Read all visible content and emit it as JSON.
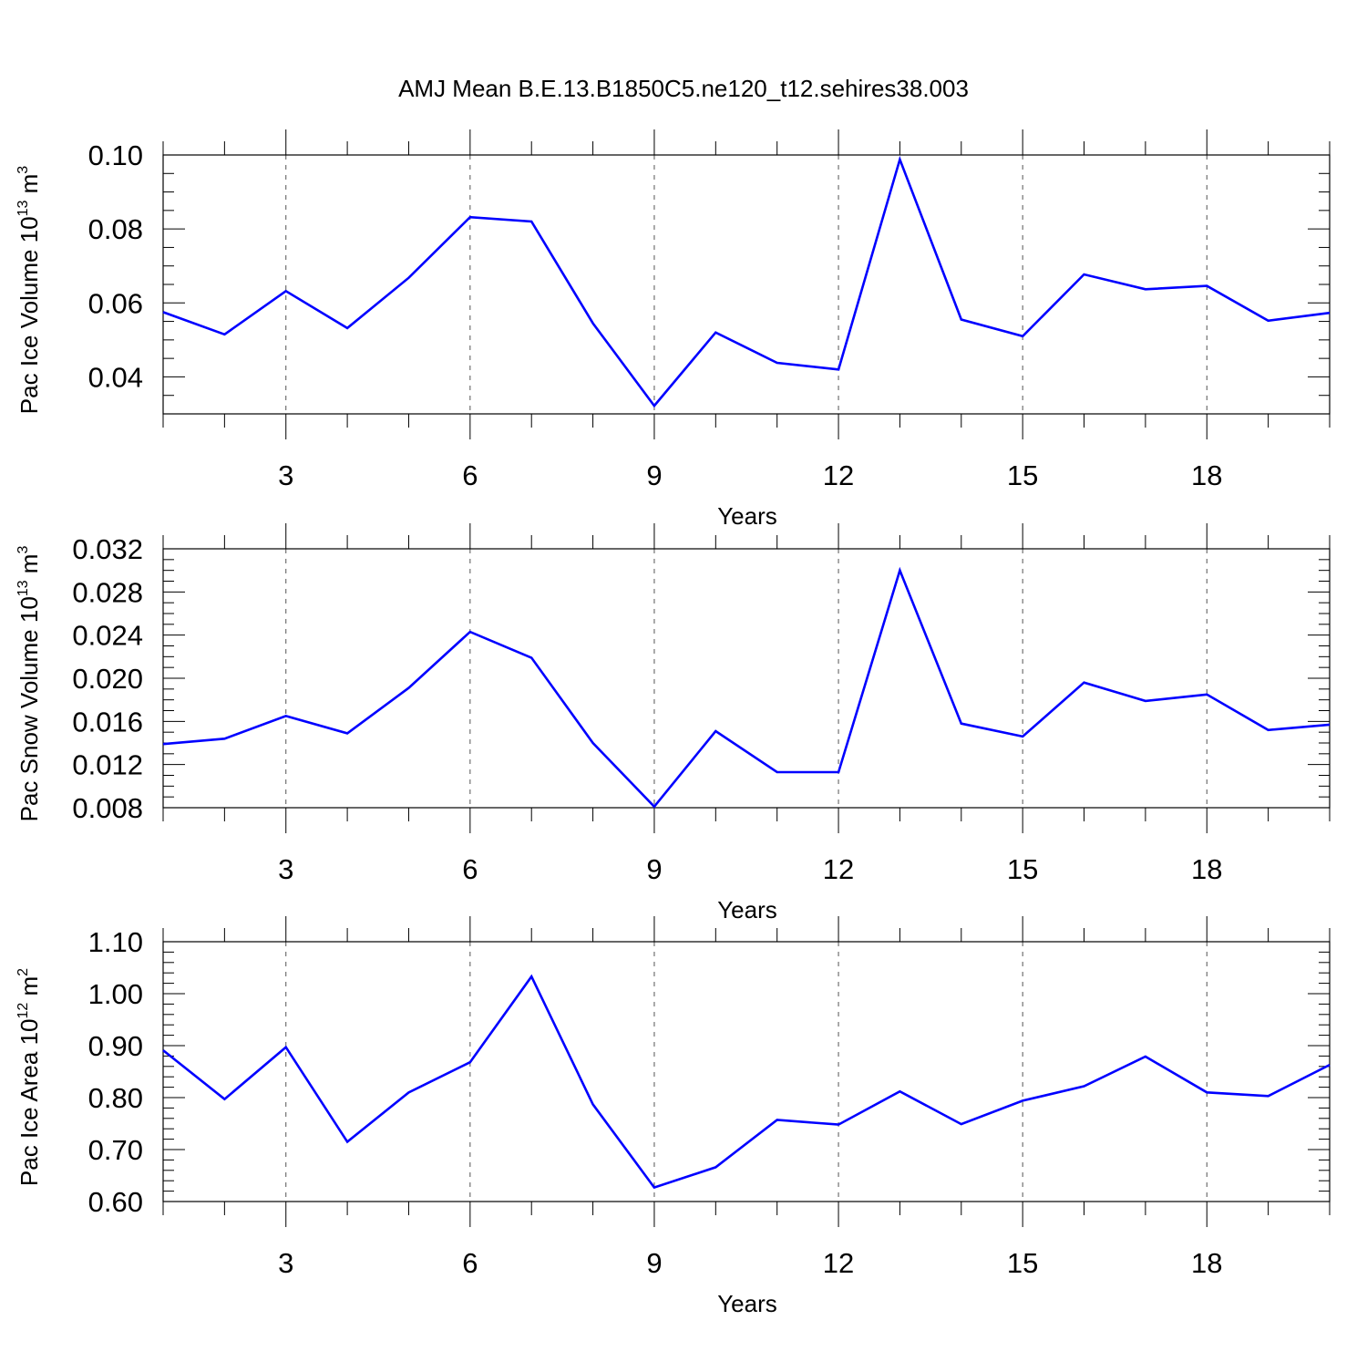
{
  "figure_title": "AMJ Mean B.E.13.B1850C5.ne120_t12.sehires38.003",
  "colors": {
    "line": "#0000ff",
    "axis": "#000000",
    "grid": "#555555",
    "background": "#ffffff"
  },
  "chart_data": [
    {
      "type": "line",
      "xlabel": "Years",
      "ylabel": {
        "text": "Pac Ice Volume 10",
        "exponent": "13",
        "unit": " m",
        "unit_exponent": "3"
      },
      "x_ticks": [
        "3",
        "6",
        "9",
        "12",
        "15",
        "18"
      ],
      "y_ticks": [
        "0.04",
        "0.06",
        "0.08",
        "0.10"
      ],
      "xlim": [
        1,
        20
      ],
      "ylim": [
        0.03,
        0.1
      ],
      "grid": "vertical dashed at major x ticks",
      "x": [
        1,
        2,
        3,
        4,
        5,
        6,
        7,
        8,
        9,
        10,
        11,
        12,
        13,
        14,
        15,
        16,
        17,
        18,
        19,
        20
      ],
      "y": [
        0.0575,
        0.0515,
        0.0632,
        0.0532,
        0.0668,
        0.0832,
        0.082,
        0.0545,
        0.0322,
        0.052,
        0.0438,
        0.042,
        0.0988,
        0.0555,
        0.051,
        0.0677,
        0.0637,
        0.0646,
        0.0552,
        0.0573
      ]
    },
    {
      "type": "line",
      "xlabel": "Years",
      "ylabel": {
        "text": "Pac Snow Volume 10",
        "exponent": "13",
        "unit": " m",
        "unit_exponent": "3"
      },
      "x_ticks": [
        "3",
        "6",
        "9",
        "12",
        "15",
        "18"
      ],
      "y_ticks": [
        "0.008",
        "0.012",
        "0.016",
        "0.020",
        "0.024",
        "0.028",
        "0.032"
      ],
      "xlim": [
        1,
        20
      ],
      "ylim": [
        0.008,
        0.032
      ],
      "grid": "vertical dashed at major x ticks",
      "x": [
        1,
        2,
        3,
        4,
        5,
        6,
        7,
        8,
        9,
        10,
        11,
        12,
        13,
        14,
        15,
        16,
        17,
        18,
        19,
        20
      ],
      "y": [
        0.0139,
        0.0144,
        0.0165,
        0.0149,
        0.0191,
        0.0243,
        0.0219,
        0.014,
        0.0081,
        0.0151,
        0.0113,
        0.0113,
        0.03,
        0.0158,
        0.0146,
        0.0196,
        0.0179,
        0.0185,
        0.0152,
        0.0157
      ]
    },
    {
      "type": "line",
      "xlabel": "Years",
      "ylabel": {
        "text": "Pac Ice Area 10",
        "exponent": "12",
        "unit": " m",
        "unit_exponent": "2"
      },
      "x_ticks": [
        "3",
        "6",
        "9",
        "12",
        "15",
        "18"
      ],
      "y_ticks": [
        "0.60",
        "0.70",
        "0.80",
        "0.90",
        "1.00",
        "1.10"
      ],
      "xlim": [
        1,
        20
      ],
      "ylim": [
        0.6,
        1.1
      ],
      "grid": "vertical dashed at major x ticks",
      "x": [
        1,
        2,
        3,
        4,
        5,
        6,
        7,
        8,
        9,
        10,
        11,
        12,
        13,
        14,
        15,
        16,
        17,
        18,
        19,
        20
      ],
      "y": [
        0.891,
        0.797,
        0.897,
        0.715,
        0.81,
        0.868,
        1.033,
        0.787,
        0.627,
        0.666,
        0.757,
        0.748,
        0.812,
        0.749,
        0.794,
        0.822,
        0.879,
        0.81,
        0.803,
        0.863
      ]
    }
  ]
}
